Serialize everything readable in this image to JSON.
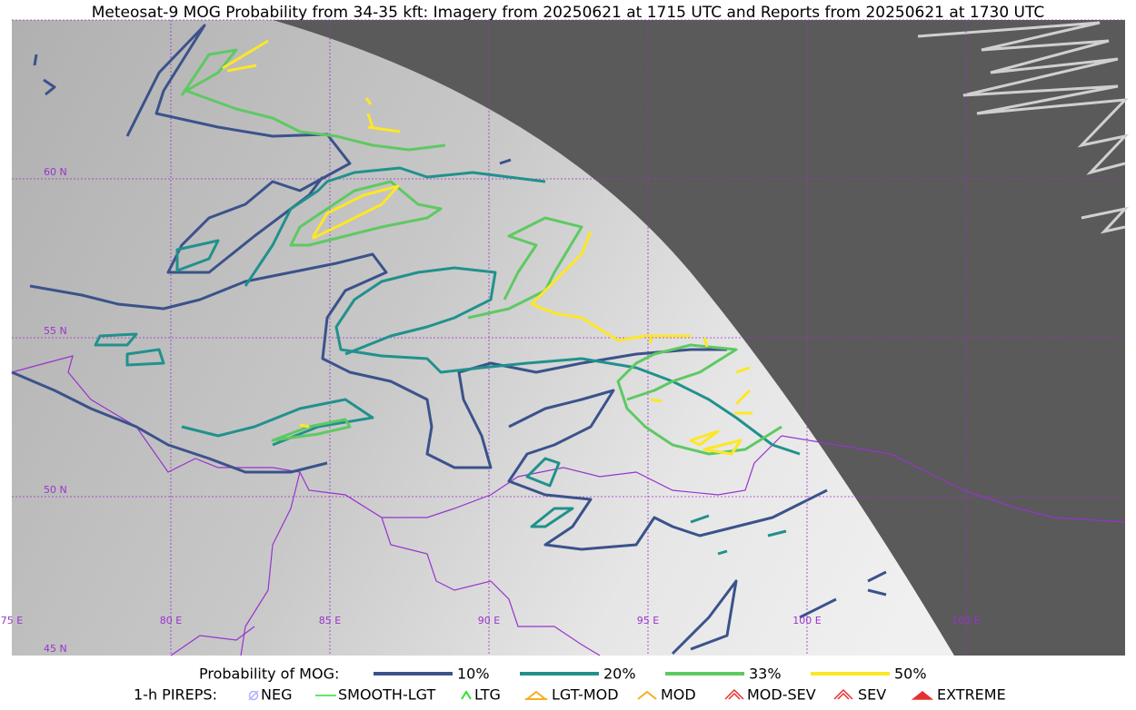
{
  "header": {
    "title": "Meteosat-9 MOG Probability from 34-35 kft: Imagery from 20250621 at 1715 UTC and Reports from 20250621 at 1730 UTC"
  },
  "map": {
    "lat_labels": [
      "60 N",
      "55 N",
      "50 N",
      "45 N"
    ],
    "lon_labels": [
      "75 E",
      "80 E",
      "85 E",
      "90 E",
      "95 E",
      "100 E",
      "105 E"
    ]
  },
  "legend": {
    "probability": {
      "label": "Probability of MOG:",
      "items": [
        "10%",
        "20%",
        "33%",
        "50%"
      ]
    },
    "pireps": {
      "label": "1-h PIREPS:",
      "items": [
        "NEG",
        "SMOOTH-LGT",
        "LTG",
        "LGT-MOD",
        "MOD",
        "MOD-SEV",
        "SEV",
        "EXTREME"
      ]
    }
  }
}
